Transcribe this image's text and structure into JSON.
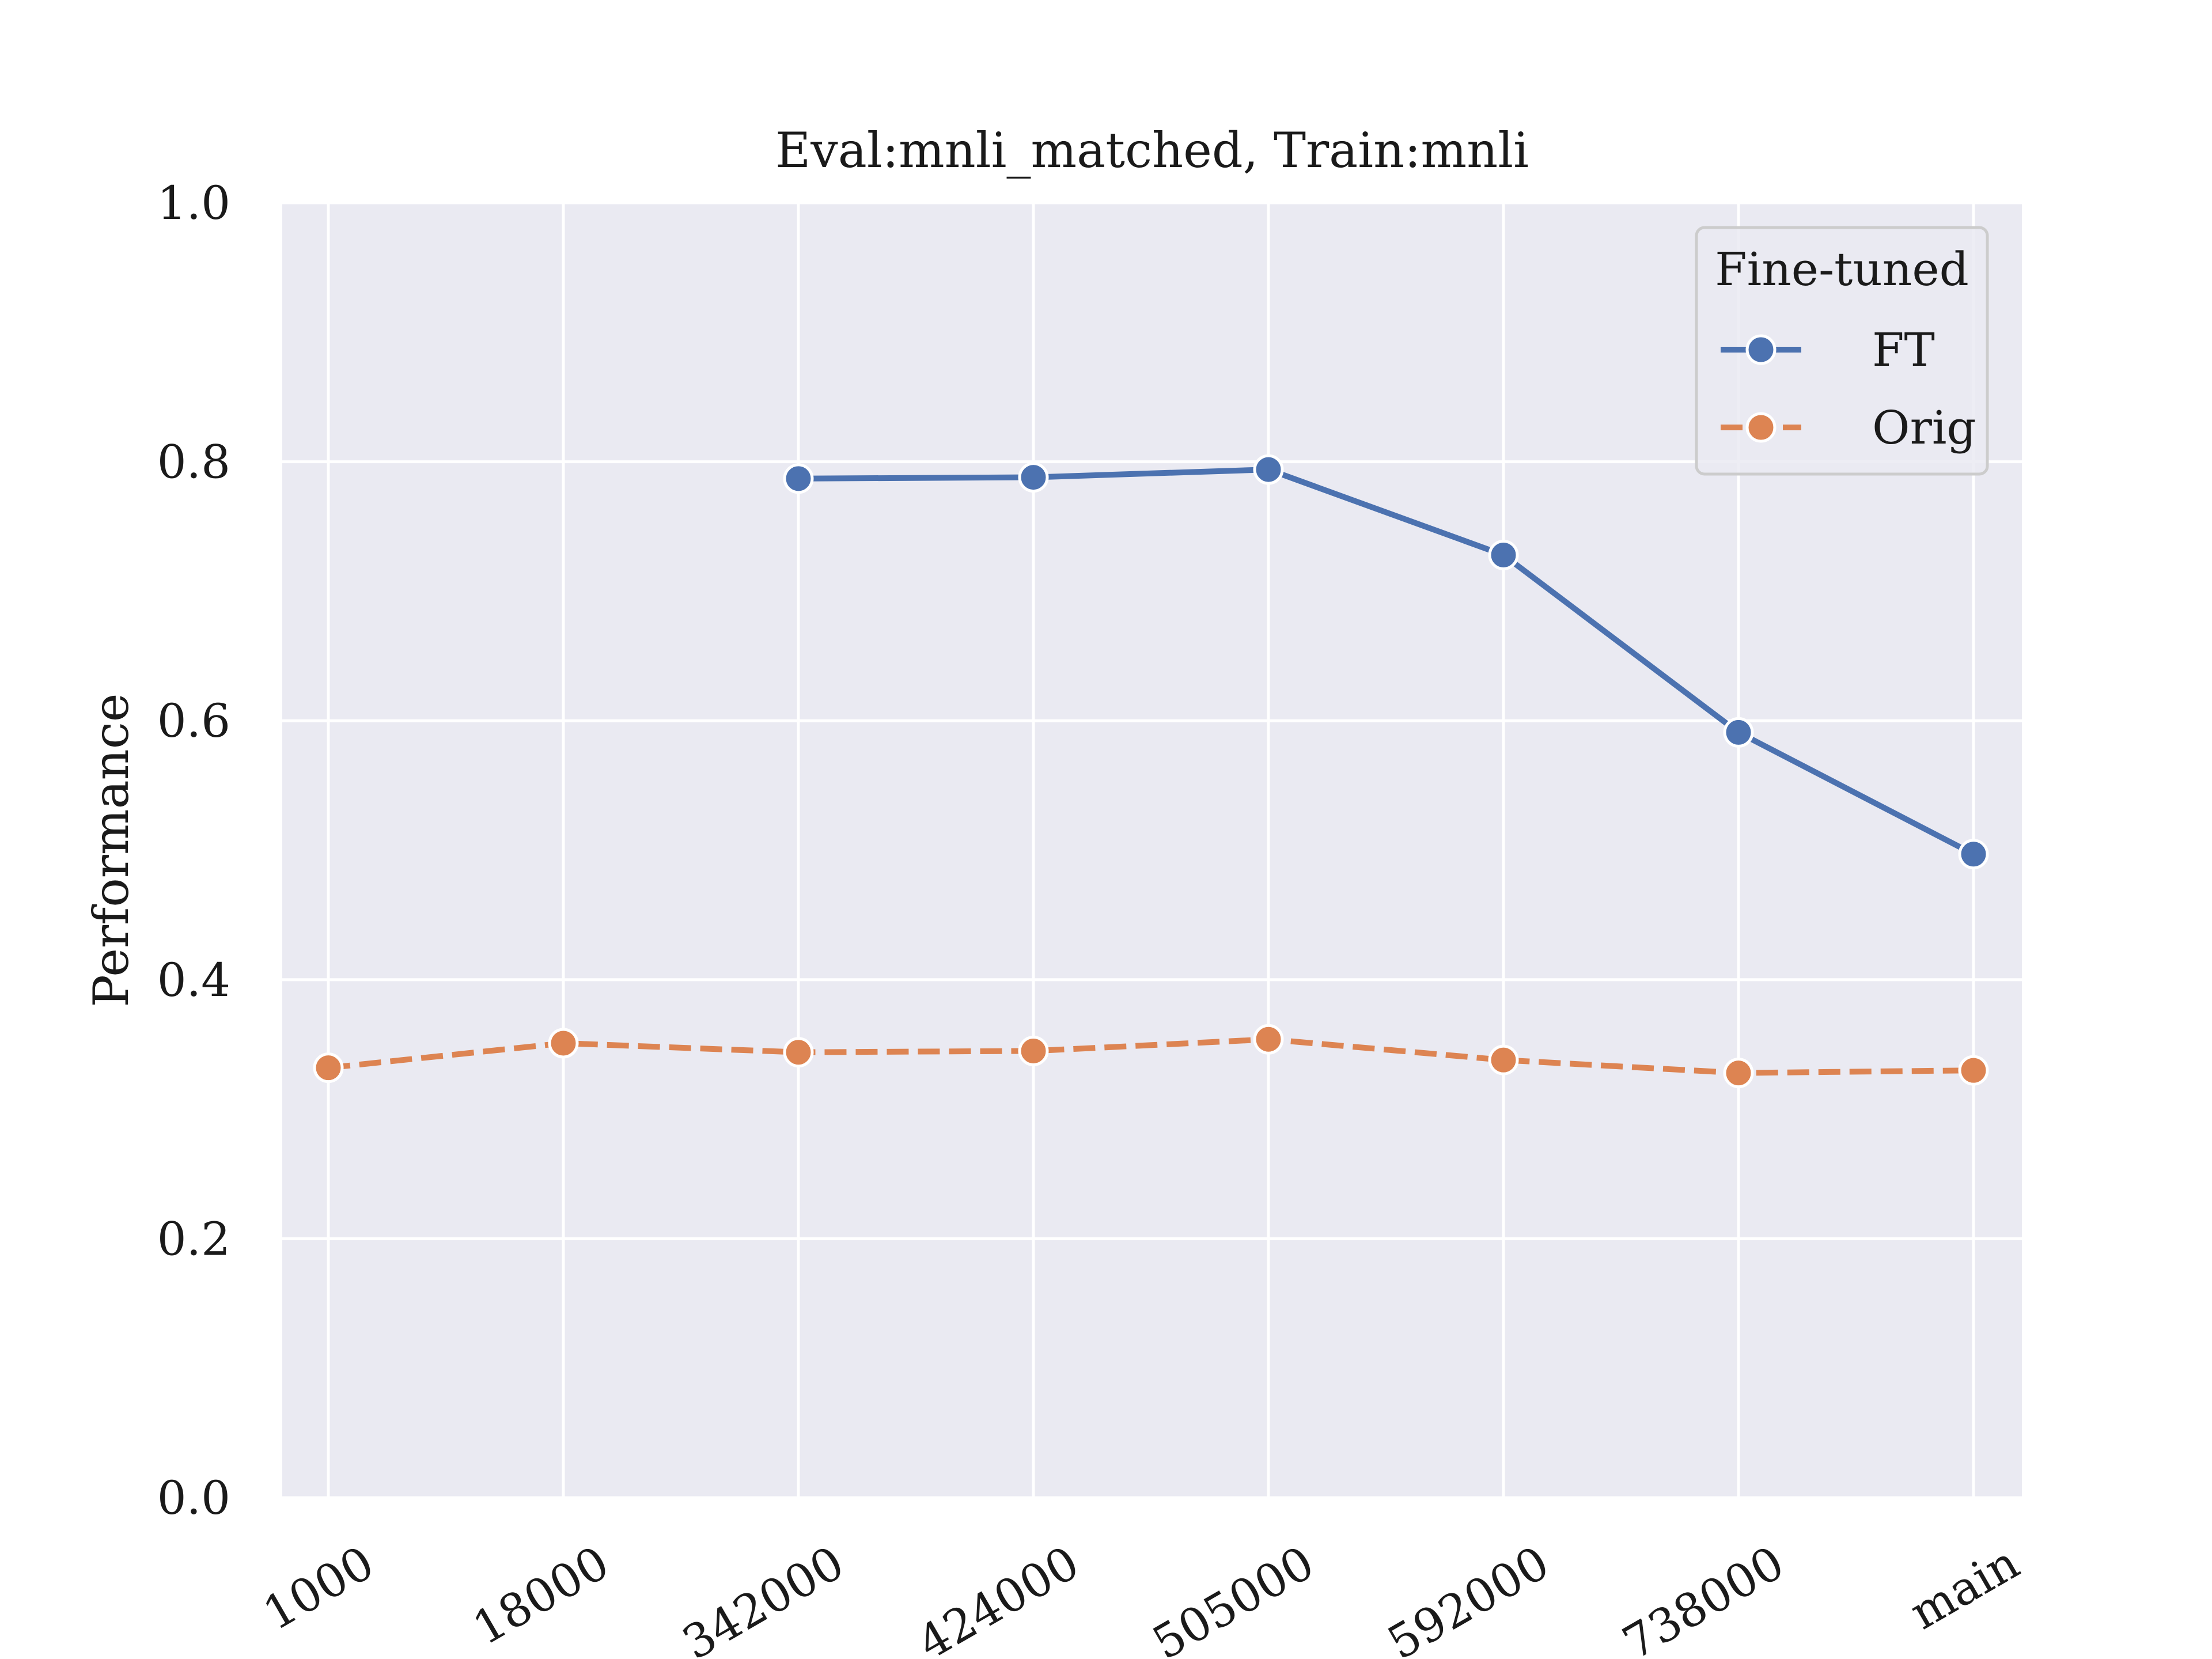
{
  "chart_data": {
    "type": "line",
    "title": "Eval:mnli_matched, Train:mnli",
    "xlabel": "",
    "ylabel": "Performance",
    "categories": [
      "1000",
      "18000",
      "342000",
      "424000",
      "505000",
      "592000",
      "738000",
      "main"
    ],
    "ylim": [
      0.0,
      1.0
    ],
    "yticks": [
      "0.0",
      "0.2",
      "0.4",
      "0.6",
      "0.8",
      "1.0"
    ],
    "grid": true,
    "legend": {
      "title": "Fine-tuned",
      "placement": "top-right"
    },
    "series": [
      {
        "name": "FT",
        "color": "#4c72b0",
        "dash": "solid",
        "values": [
          null,
          null,
          0.787,
          0.788,
          0.794,
          0.728,
          0.591,
          0.497
        ]
      },
      {
        "name": "Orig",
        "color": "#dd8452",
        "dash": "dashed",
        "values": [
          0.332,
          0.351,
          0.344,
          0.345,
          0.354,
          0.338,
          0.328,
          0.33
        ]
      }
    ]
  },
  "colors": {
    "plot_background": "#eaeaf2",
    "grid": "#ffffff"
  }
}
